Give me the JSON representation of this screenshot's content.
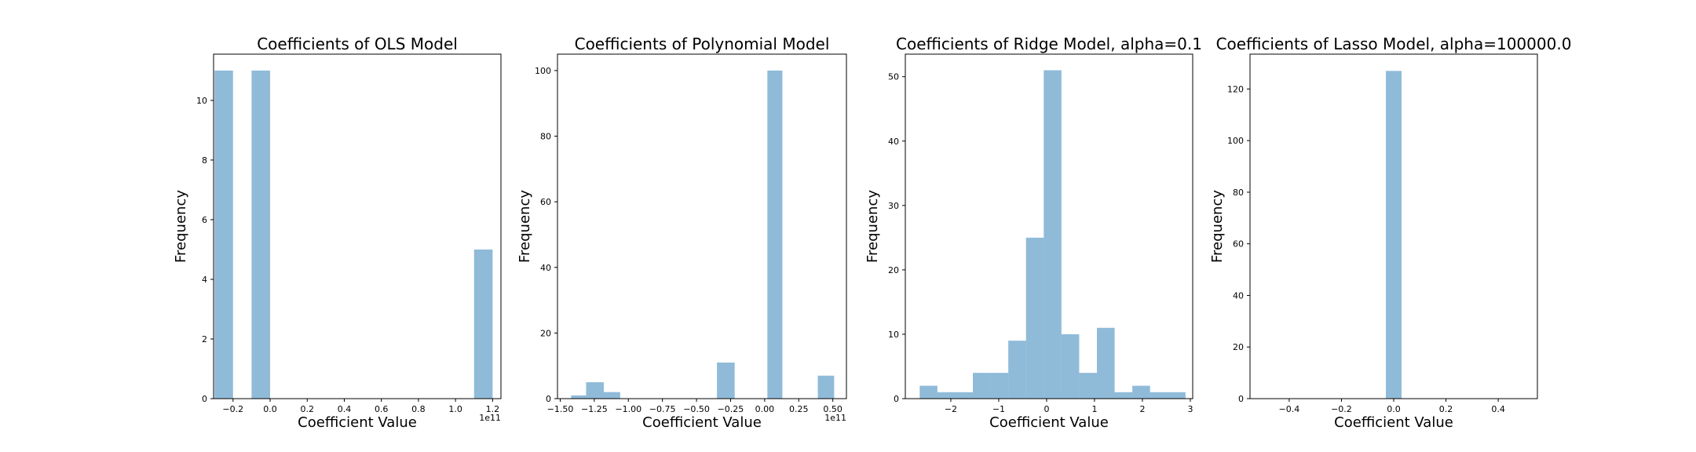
{
  "chart_data": [
    {
      "type": "histogram",
      "title": "Coefficients of OLS Model",
      "xlabel": "Coefficient Value",
      "ylabel": "Frequency",
      "x_offset_label": "1e11",
      "xlim": [
        -0.305,
        1.245
      ],
      "ylim": [
        0,
        11.55
      ],
      "xticks": [
        -0.2,
        0.0,
        0.2,
        0.4,
        0.6,
        0.8,
        1.0,
        1.2
      ],
      "xtick_labels": [
        "−0.2",
        "0.0",
        "0.2",
        "0.4",
        "0.6",
        "0.8",
        "1.0",
        "1.2"
      ],
      "yticks": [
        0,
        2,
        4,
        6,
        8,
        10
      ],
      "ytick_labels": [
        "0",
        "2",
        "4",
        "6",
        "8",
        "10"
      ],
      "bins": [
        {
          "x0": -0.3,
          "x1": -0.2,
          "count": 11
        },
        {
          "x0": -0.1,
          "x1": 0.0,
          "count": 11
        },
        {
          "x0": 1.1,
          "x1": 1.2,
          "count": 5
        }
      ],
      "bar_color": "#1f77b4",
      "grid": false
    },
    {
      "type": "histogram",
      "title": "Coefficients of Polynomial Model",
      "xlabel": "Coefficient Value",
      "ylabel": "Frequency",
      "x_offset_label": "1e11",
      "xlim": [
        -1.52,
        0.6
      ],
      "ylim": [
        0,
        105
      ],
      "xticks": [
        -1.5,
        -1.25,
        -1.0,
        -0.75,
        -0.5,
        -0.25,
        0.0,
        0.25,
        0.5
      ],
      "xtick_labels": [
        "−1.50",
        "−1.25",
        "−1.00",
        "−0.75",
        "−0.50",
        "−0.25",
        "0.00",
        "0.25",
        "0.50"
      ],
      "yticks": [
        0,
        20,
        40,
        60,
        80,
        100
      ],
      "ytick_labels": [
        "0",
        "20",
        "40",
        "60",
        "80",
        "100"
      ],
      "bins": [
        {
          "x0": -1.42,
          "x1": -1.31,
          "count": 1
        },
        {
          "x0": -1.31,
          "x1": -1.18,
          "count": 5
        },
        {
          "x0": -1.18,
          "x1": -1.06,
          "count": 2
        },
        {
          "x0": -0.35,
          "x1": -0.22,
          "count": 11
        },
        {
          "x0": 0.02,
          "x1": 0.13,
          "count": 100
        },
        {
          "x0": 0.39,
          "x1": 0.51,
          "count": 7
        }
      ],
      "bar_color": "#1f77b4",
      "grid": false
    },
    {
      "type": "histogram",
      "title": "Coefficients of Ridge Model, alpha=0.1",
      "xlabel": "Coefficient Value",
      "ylabel": "Frequency",
      "x_offset_label": "",
      "xlim": [
        -2.95,
        3.05
      ],
      "ylim": [
        0,
        53.5
      ],
      "xticks": [
        -2,
        -1,
        0,
        1,
        2,
        3
      ],
      "xtick_labels": [
        "−2",
        "−1",
        "0",
        "1",
        "2",
        "3"
      ],
      "yticks": [
        0,
        10,
        20,
        30,
        40,
        50
      ],
      "ytick_labels": [
        "0",
        "10",
        "20",
        "30",
        "40",
        "50"
      ],
      "bins": [
        {
          "x0": -2.65,
          "x1": -2.28,
          "count": 2
        },
        {
          "x0": -2.28,
          "x1": -1.91,
          "count": 1
        },
        {
          "x0": -1.91,
          "x1": -1.54,
          "count": 1
        },
        {
          "x0": -1.54,
          "x1": -1.17,
          "count": 4
        },
        {
          "x0": -1.17,
          "x1": -0.8,
          "count": 4
        },
        {
          "x0": -0.8,
          "x1": -0.43,
          "count": 9
        },
        {
          "x0": -0.43,
          "x1": -0.06,
          "count": 25
        },
        {
          "x0": -0.06,
          "x1": 0.31,
          "count": 51
        },
        {
          "x0": 0.31,
          "x1": 0.68,
          "count": 10
        },
        {
          "x0": 0.68,
          "x1": 1.05,
          "count": 4
        },
        {
          "x0": 1.05,
          "x1": 1.42,
          "count": 11
        },
        {
          "x0": 1.42,
          "x1": 1.79,
          "count": 1
        },
        {
          "x0": 1.79,
          "x1": 2.16,
          "count": 2
        },
        {
          "x0": 2.16,
          "x1": 2.53,
          "count": 1
        },
        {
          "x0": 2.53,
          "x1": 2.9,
          "count": 1
        }
      ],
      "bar_color": "#1f77b4",
      "grid": false
    },
    {
      "type": "histogram",
      "title": "Coefficients of Lasso Model, alpha=100000.0",
      "xlabel": "Coefficient Value",
      "ylabel": "Frequency",
      "x_offset_label": "",
      "xlim": [
        -0.55,
        0.55
      ],
      "ylim": [
        0,
        133.5
      ],
      "xticks": [
        -0.4,
        -0.2,
        0.0,
        0.2,
        0.4
      ],
      "xtick_labels": [
        "−0.4",
        "−0.2",
        "0.0",
        "0.2",
        "0.4"
      ],
      "yticks": [
        0,
        20,
        40,
        60,
        80,
        100,
        120
      ],
      "ytick_labels": [
        "0",
        "20",
        "40",
        "60",
        "80",
        "100",
        "120"
      ],
      "bins": [
        {
          "x0": -0.03,
          "x1": 0.03,
          "count": 127
        }
      ],
      "bar_color": "#1f77b4",
      "grid": false
    }
  ]
}
